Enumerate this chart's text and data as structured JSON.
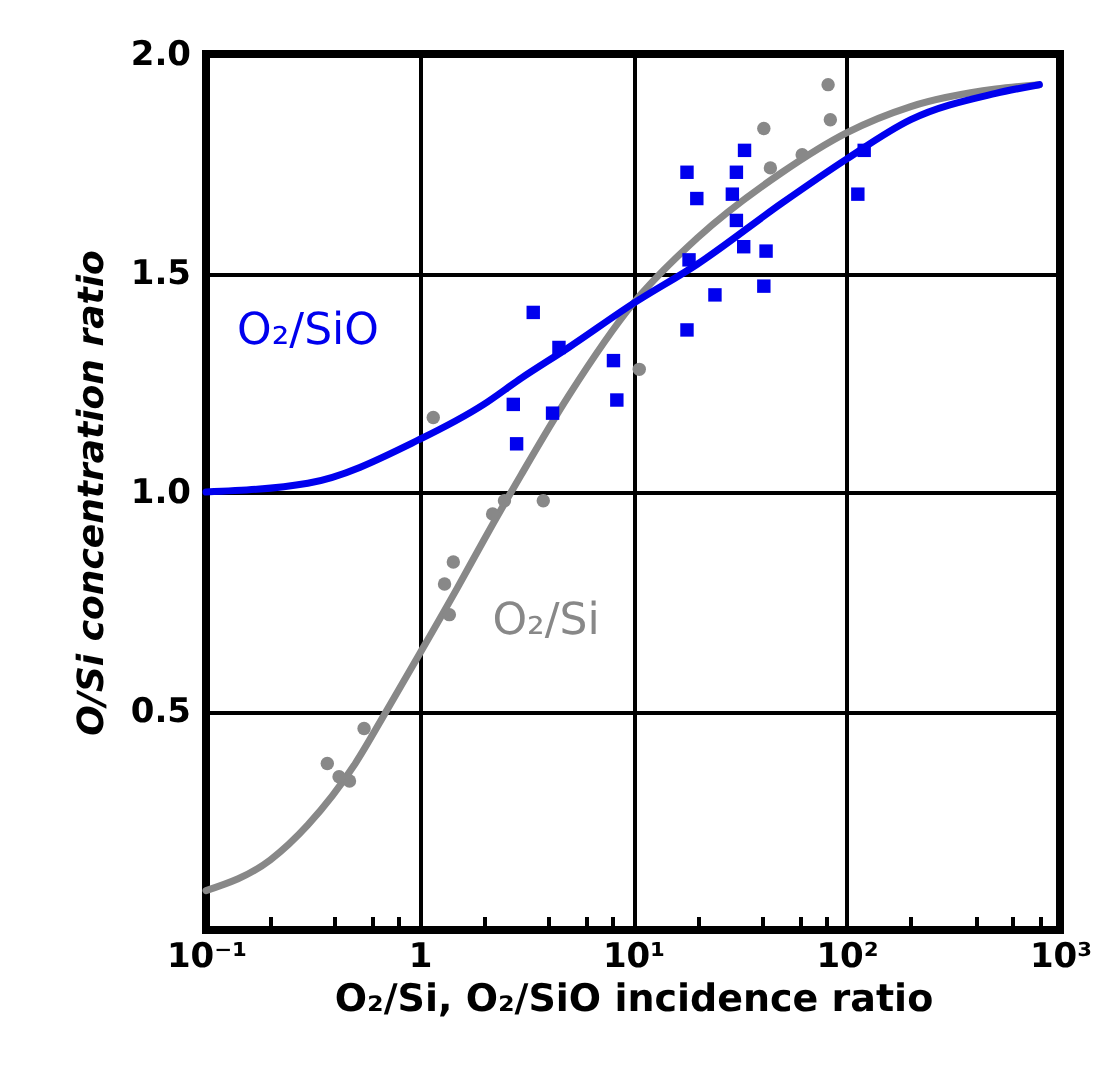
{
  "chart_data": {
    "type": "scatter",
    "xlabel": "O₂/Si, O₂/SiO incidence ratio",
    "ylabel": "O/Si concentration ratio",
    "log": "x",
    "grid": true,
    "xlim": [
      0.1,
      1000
    ],
    "ylim": [
      0,
      2
    ],
    "xticks": [
      {
        "value": 0.1,
        "label": "10⁻¹"
      },
      {
        "value": 0.2,
        "label": null
      },
      {
        "value": 0.4,
        "label": null
      },
      {
        "value": 0.6,
        "label": null
      },
      {
        "value": 0.8,
        "label": null
      },
      1,
      {
        "value": 2,
        "label": null
      },
      {
        "value": 4,
        "label": null
      },
      {
        "value": 6,
        "label": null
      },
      {
        "value": 8,
        "label": null
      },
      {
        "value": 10,
        "label": "10¹"
      },
      {
        "value": 20,
        "label": null
      },
      {
        "value": 40,
        "label": null
      },
      {
        "value": 60,
        "label": null
      },
      {
        "value": 80,
        "label": null
      },
      {
        "value": 100,
        "label": "10²"
      },
      {
        "value": 200,
        "label": null
      },
      {
        "value": 400,
        "label": null
      },
      {
        "value": 600,
        "label": null
      },
      {
        "value": 800,
        "label": null
      },
      {
        "value": 1000,
        "label": "10³"
      }
    ],
    "yticks": [
      0.5,
      {
        "value": 1,
        "label": "1.0"
      },
      1.5,
      {
        "value": 2,
        "label": "2.0"
      }
    ],
    "series": [
      {
        "type": "line",
        "name": "O₂/Si",
        "color": "#888888",
        "marker": "none",
        "x": [
          0.1,
          0.2,
          0.3,
          0.5,
          0.7,
          1,
          1.5,
          2,
          3,
          5,
          10,
          20,
          50,
          100,
          200,
          500,
          800
        ],
        "values": [
          0.09,
          0.16,
          0.24,
          0.38,
          0.5,
          0.63,
          0.78,
          0.89,
          1.04,
          1.22,
          1.43,
          1.58,
          1.73,
          1.82,
          1.88,
          1.92,
          1.93
        ]
      },
      {
        "type": "line",
        "name": "O₂/SiO",
        "color": "#0000ee",
        "marker": "none",
        "x": [
          0.1,
          0.3,
          1,
          2,
          3,
          5,
          10,
          20,
          50,
          100,
          200,
          500,
          800
        ],
        "values": [
          1.0,
          1.02,
          1.12,
          1.2,
          1.26,
          1.33,
          1.43,
          1.52,
          1.66,
          1.76,
          1.85,
          1.91,
          1.93
        ]
      },
      {
        "color": "#888888",
        "marker": "circle",
        "x": [
          82,
          84,
          41,
          44,
          62,
          1.16,
          10.7,
          3.8,
          2.5,
          2.2,
          1.44,
          1.31,
          1.38,
          0.55,
          0.37,
          0.47,
          0.42
        ],
        "values": [
          1.93,
          1.85,
          1.83,
          1.74,
          1.77,
          1.17,
          1.28,
          0.98,
          0.98,
          0.95,
          0.84,
          0.79,
          0.72,
          0.46,
          0.38,
          0.34,
          0.35
        ]
      },
      {
        "color": "#0000ee",
        "marker": "square",
        "x": [
          3.41,
          4.5,
          2.75,
          4.2,
          2.85,
          8.1,
          8.4,
          17.9,
          19.9,
          33.3,
          30.5,
          29.2,
          30.5,
          18.3,
          33,
          42,
          41,
          24.2,
          17.9,
          121,
          113
        ],
        "values": [
          1.41,
          1.33,
          1.2,
          1.18,
          1.11,
          1.3,
          1.21,
          1.73,
          1.67,
          1.78,
          1.73,
          1.68,
          1.62,
          1.53,
          1.56,
          1.55,
          1.47,
          1.45,
          1.37,
          1.78,
          1.68
        ]
      }
    ]
  }
}
